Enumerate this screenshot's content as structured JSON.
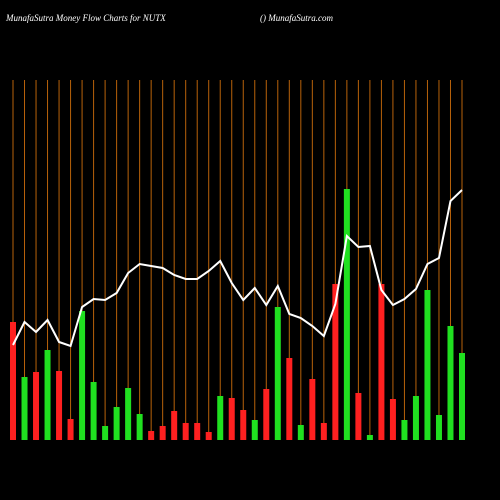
{
  "chart_data": {
    "type": "bar-line",
    "title": "MunafaSutra  Money Flow  Charts for NUTX",
    "subtitle": "() MunafaSutra.com",
    "categories": [
      null,
      null,
      null,
      null,
      null,
      null,
      null,
      null,
      null,
      null,
      null,
      null,
      null,
      null,
      null,
      null,
      null,
      null,
      null,
      null,
      null,
      null,
      null,
      null,
      null,
      null,
      null,
      null,
      null,
      null,
      null,
      null,
      null,
      null,
      null,
      null,
      null,
      null,
      null,
      null
    ],
    "ylim": [
      0,
      360
    ],
    "grid_color": "#b8620a",
    "series": [
      {
        "kind": "bar",
        "values": [
          118,
          63,
          68,
          90,
          69,
          21,
          129,
          58,
          14,
          33,
          52,
          26,
          9,
          14,
          29,
          17,
          17,
          8,
          44,
          42,
          30,
          20,
          51,
          133,
          82,
          15,
          61,
          17,
          156,
          251,
          47,
          5,
          156,
          41,
          20,
          44,
          150,
          25,
          114,
          87
        ],
        "colors": [
          "#ff2020",
          "#20e020",
          "#ff2020",
          "#20e020",
          "#ff2020",
          "#ff2020",
          "#20e020",
          "#20e020",
          "#20e020",
          "#20e020",
          "#20e020",
          "#20e020",
          "#ff2020",
          "#ff2020",
          "#ff2020",
          "#ff2020",
          "#ff2020",
          "#ff2020",
          "#20e020",
          "#ff2020",
          "#ff2020",
          "#20e020",
          "#ff2020",
          "#20e020",
          "#ff2020",
          "#20e020",
          "#ff2020",
          "#ff2020",
          "#ff2020",
          "#20e020",
          "#ff2020",
          "#20e020",
          "#ff2020",
          "#ff2020",
          "#20e020",
          "#20e020",
          "#20e020",
          "#20e020",
          "#20e020",
          "#20e020"
        ]
      },
      {
        "kind": "line",
        "color": "#ffffff",
        "values": [
          95,
          118,
          108,
          120,
          98,
          94,
          133,
          141,
          140,
          147,
          167,
          176,
          174,
          172,
          165,
          161,
          161,
          169,
          179,
          157,
          140,
          152,
          135,
          154,
          126,
          122,
          114,
          104,
          136,
          204,
          193,
          194,
          150,
          135,
          141,
          151,
          176,
          182,
          239,
          250
        ]
      }
    ]
  }
}
